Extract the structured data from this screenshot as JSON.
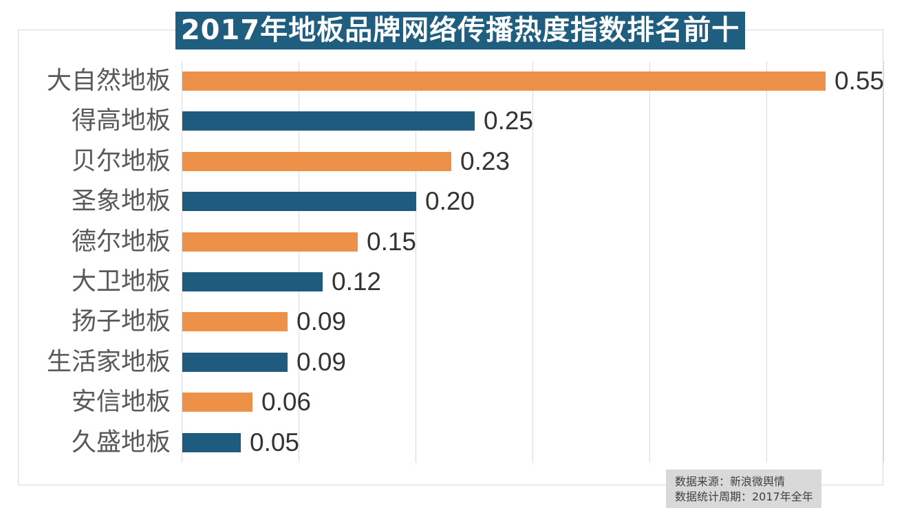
{
  "title": "2017年地板品牌网络传播热度指数排名前十",
  "footer": {
    "source_line": "数据来源：新浪微舆情",
    "period_line": "数据统计周期：2017年全年"
  },
  "colors": {
    "title_bg": "#205E7F",
    "title_text": "#FFFFFF",
    "bar_orange": "#ED9149",
    "bar_teal": "#1E5B7E",
    "gridline": "#D9D9D9",
    "frame_border": "#D9D9D9",
    "category_label": "#595959",
    "value_label": "#333333",
    "footer_bg": "#D9D9D9",
    "footer_text": "#404040"
  },
  "chart_data": {
    "type": "bar",
    "orientation": "horizontal",
    "title": "2017年地板品牌网络传播热度指数排名前十",
    "categories": [
      "大自然地板",
      "得高地板",
      "贝尔地板",
      "圣象地板",
      "德尔地板",
      "大卫地板",
      "扬子地板",
      "生活家地板",
      "安信地板",
      "久盛地板"
    ],
    "values": [
      0.55,
      0.25,
      0.23,
      0.2,
      0.15,
      0.12,
      0.09,
      0.09,
      0.06,
      0.05
    ],
    "value_labels": [
      "0.55",
      "0.25",
      "0.23",
      "0.20",
      "0.15",
      "0.12",
      "0.09",
      "0.09",
      "0.06",
      "0.05"
    ],
    "xlim": [
      0,
      0.6
    ],
    "gridline_interval": 0.1,
    "grid": true,
    "legend": false,
    "bar_color_pattern": [
      "#ED9149",
      "#1E5B7E"
    ],
    "annotations": [
      "数据来源：新浪微舆情",
      "数据统计周期：2017年全年"
    ]
  }
}
